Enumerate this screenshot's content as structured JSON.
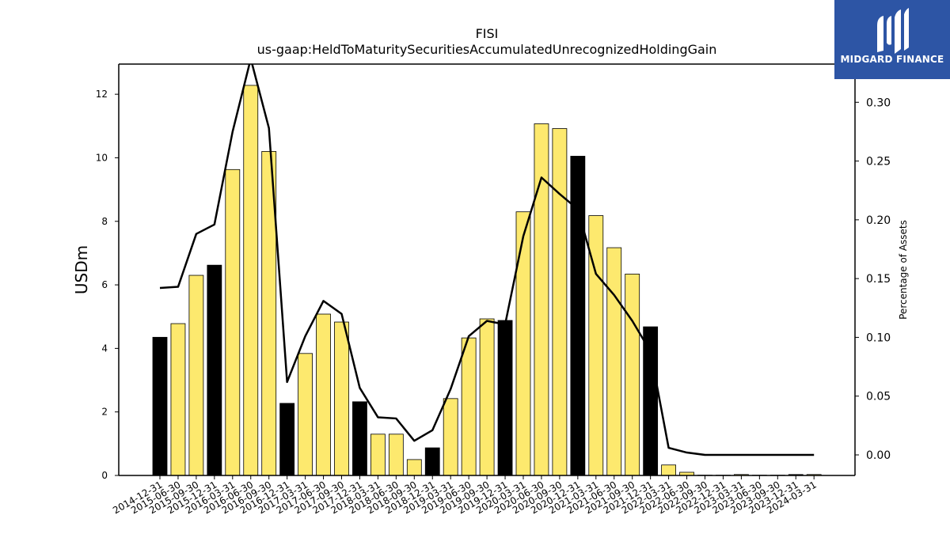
{
  "chart_data": {
    "type": "bar",
    "title": "FISI",
    "subtitle": "us-gaap:HeldToMaturitySecuritiesAccumulatedUnrecognizedHoldingGain",
    "ylabel": "USDm",
    "y2label": "Percentage of Assets",
    "ylim": [
      0,
      12.95
    ],
    "y2lim": [
      -0.0175,
      0.3325
    ],
    "yticks": [
      "0",
      "2",
      "4",
      "6",
      "8",
      "10",
      "12"
    ],
    "y2ticks": [
      "0.00",
      "0.05",
      "0.10",
      "0.15",
      "0.20",
      "0.25",
      "0.30"
    ],
    "categories": [
      "2014-12-31",
      "2015-06-30",
      "2015-09-30",
      "2015-12-31",
      "2016-03-31",
      "2016-06-30",
      "2016-09-30",
      "2016-12-31",
      "2017-03-31",
      "2017-06-30",
      "2017-09-30",
      "2017-12-31",
      "2018-03-31",
      "2018-06-30",
      "2018-09-30",
      "2018-12-31",
      "2019-03-31",
      "2019-06-30",
      "2019-09-30",
      "2019-12-31",
      "2020-03-31",
      "2020-06-30",
      "2020-09-30",
      "2020-12-31",
      "2021-03-31",
      "2021-06-30",
      "2021-09-30",
      "2021-12-31",
      "2022-03-31",
      "2022-06-30",
      "2022-09-30",
      "2022-12-31",
      "2023-03-31",
      "2023-06-30",
      "2023-09-30",
      "2023-12-31",
      "2024-03-31"
    ],
    "series": [
      {
        "values": [
          4.35,
          4.78,
          6.3,
          6.62,
          9.63,
          12.28,
          10.2,
          2.27,
          3.84,
          5.08,
          4.83,
          2.32,
          1.3,
          1.3,
          0.5,
          0.87,
          2.42,
          4.33,
          4.93,
          4.88,
          8.3,
          11.07,
          10.92,
          10.05,
          8.18,
          7.17,
          6.34,
          4.68,
          0.33,
          0.1,
          0.01,
          0.01,
          0.03,
          0.01,
          0.01,
          0.03,
          0.03
        ],
        "year_end": [
          true,
          false,
          false,
          true,
          false,
          false,
          false,
          true,
          false,
          false,
          false,
          true,
          false,
          false,
          false,
          true,
          false,
          false,
          false,
          true,
          false,
          false,
          false,
          true,
          false,
          false,
          false,
          true,
          false,
          false,
          false,
          true,
          false,
          false,
          false,
          true,
          false
        ]
      },
      {
        "axis": "right",
        "type": "line",
        "values": [
          0.142,
          0.143,
          0.188,
          0.196,
          0.275,
          0.337,
          0.278,
          0.062,
          0.101,
          0.131,
          0.12,
          0.057,
          0.032,
          0.031,
          0.012,
          0.021,
          0.056,
          0.101,
          0.114,
          0.111,
          0.186,
          0.236,
          0.222,
          0.209,
          0.154,
          0.136,
          0.114,
          0.088,
          0.006,
          0.002,
          0.0,
          0.0,
          0.0,
          0.0,
          0.0,
          0.0,
          0.0
        ]
      }
    ],
    "colors": {
      "bar": "#fde96e",
      "bar_year_end": "#000000",
      "edge": "#000000",
      "line": "#000000"
    }
  },
  "logo": {
    "text": "MIDGARD FINANCE",
    "bg": "#2d55a5"
  }
}
